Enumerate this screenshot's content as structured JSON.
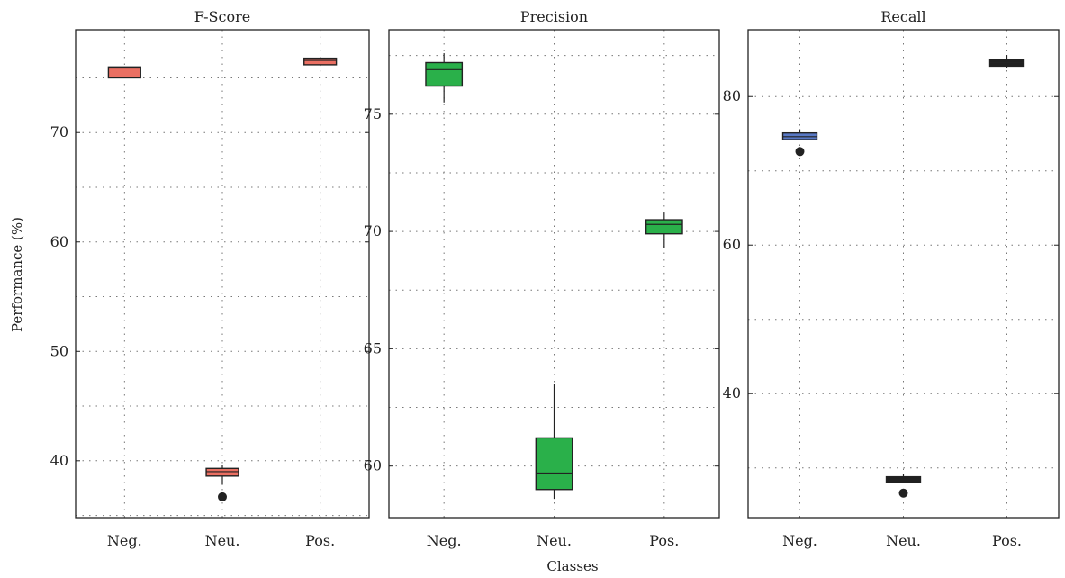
{
  "figure": {
    "ylabel": "Performance (%)",
    "xlabel": "Classes"
  },
  "chart_data": [
    {
      "type": "box",
      "title": "F-Score",
      "categories": [
        "Neg.",
        "Neu.",
        "Pos."
      ],
      "ylim": [
        34.8,
        79.4
      ],
      "yticks": [
        40,
        50,
        60,
        70
      ],
      "grid": true,
      "color": "#ea6f62",
      "boxes": [
        {
          "category": "Neg.",
          "whislo": 75.0,
          "q1": 75.0,
          "med": 75.9,
          "q3": 76.0,
          "whishi": 76.0,
          "fliers": []
        },
        {
          "category": "Neu.",
          "whislo": 37.8,
          "q1": 38.6,
          "med": 39.0,
          "q3": 39.3,
          "whishi": 39.6,
          "fliers": [
            36.7
          ]
        },
        {
          "category": "Pos.",
          "whislo": 76.1,
          "q1": 76.2,
          "med": 76.6,
          "q3": 76.8,
          "whishi": 76.9,
          "fliers": []
        }
      ]
    },
    {
      "type": "box",
      "title": "Precision",
      "categories": [
        "Neg.",
        "Neu.",
        "Pos."
      ],
      "ylim": [
        57.8,
        78.6
      ],
      "yticks": [
        60,
        65,
        70,
        75
      ],
      "grid": true,
      "color": "#2ab04a",
      "boxes": [
        {
          "category": "Neg.",
          "whislo": 75.5,
          "q1": 76.2,
          "med": 76.9,
          "q3": 77.2,
          "whishi": 77.6,
          "fliers": []
        },
        {
          "category": "Neu.",
          "whislo": 58.6,
          "q1": 59.0,
          "med": 59.7,
          "q3": 61.2,
          "whishi": 63.5,
          "fliers": []
        },
        {
          "category": "Pos.",
          "whislo": 69.3,
          "q1": 69.9,
          "med": 70.3,
          "q3": 70.5,
          "whishi": 70.8,
          "fliers": []
        }
      ]
    },
    {
      "type": "box",
      "title": "Recall",
      "categories": [
        "Neg.",
        "Neu.",
        "Pos."
      ],
      "ylim": [
        23.3,
        89.0
      ],
      "yticks": [
        40,
        60,
        80
      ],
      "grid": true,
      "color_by_box": true,
      "boxes": [
        {
          "category": "Neg.",
          "whislo": 74.1,
          "q1": 74.2,
          "med": 74.6,
          "q3": 75.1,
          "whishi": 75.6,
          "fliers": [
            72.6
          ],
          "color": "#5878c4"
        },
        {
          "category": "Neu.",
          "whislo": 28.0,
          "q1": 28.0,
          "med": 28.4,
          "q3": 28.8,
          "whishi": 29.2,
          "fliers": [
            26.6
          ],
          "color": "#202020"
        },
        {
          "category": "Pos.",
          "whislo": 83.9,
          "q1": 84.1,
          "med": 84.6,
          "q3": 85.0,
          "whishi": 85.6,
          "fliers": [],
          "color": "#202020"
        }
      ]
    }
  ]
}
